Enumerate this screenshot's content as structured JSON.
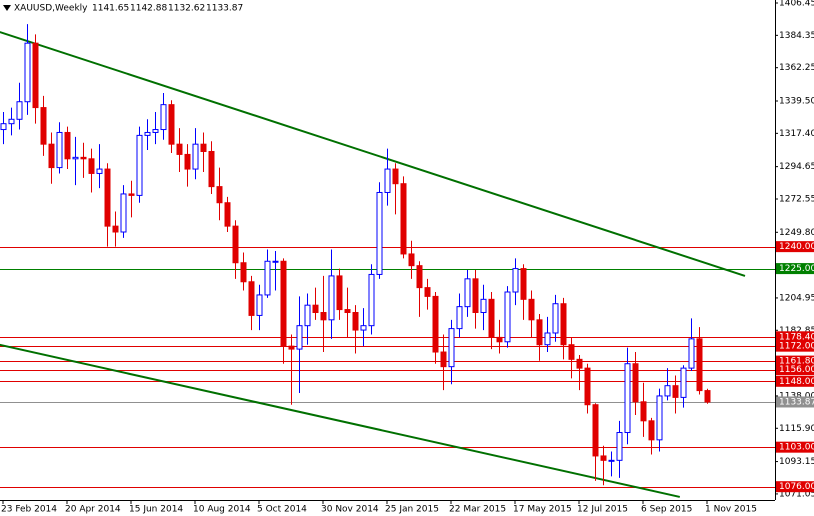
{
  "chart_data": {
    "type": "candlestick",
    "title": "XAUUSD,Weekly",
    "categories": [
      "23 Feb 2014",
      null,
      null,
      null,
      null,
      null,
      null,
      null,
      "20 Apr 2014",
      null,
      null,
      null,
      null,
      null,
      null,
      null,
      "15 Jun 2014",
      null,
      null,
      null,
      null,
      null,
      null,
      null,
      "10 Aug 2014",
      null,
      null,
      null,
      null,
      null,
      null,
      null,
      "5 Oct 2014",
      null,
      null,
      null,
      null,
      null,
      null,
      null,
      "30 Nov 2014",
      null,
      null,
      null,
      null,
      null,
      null,
      null,
      "25 Jan 2015",
      null,
      null,
      null,
      null,
      null,
      null,
      null,
      "22 Mar 2015",
      null,
      null,
      null,
      null,
      null,
      null,
      null,
      "17 May 2015",
      null,
      null,
      null,
      null,
      null,
      null,
      null,
      "12 Jul 2015",
      null,
      null,
      null,
      null,
      null,
      null,
      null,
      "6 Sep 2015",
      null,
      null,
      null,
      null,
      null,
      null,
      null,
      "1 Nov 2015"
    ],
    "open": [
      1320,
      1324,
      1327,
      1339,
      1379,
      1335,
      1310,
      1294,
      1318,
      1300,
      1301,
      1300,
      1290,
      1293,
      1254,
      1250,
      1276,
      1275,
      1316,
      1318,
      1320,
      1337,
      1310,
      1303,
      1293,
      1310,
      1305,
      1281,
      1270,
      1254,
      1229,
      1216,
      1193,
      1207,
      1230,
      1230,
      1172,
      1170,
      1186,
      1200,
      1195,
      1190,
      1220,
      1197,
      1195,
      1183,
      1186,
      1221,
      1277,
      1293,
      1283,
      1235,
      1227,
      1212,
      1206,
      1168,
      1158,
      1184,
      1199,
      1218,
      1195,
      1204,
      1178,
      1175,
      1209,
      1225,
      1204,
      1190,
      1173,
      1181,
      1201,
      1173,
      1163,
      1157,
      1132,
      1097,
      1094,
      1094,
      1113,
      1160,
      1134,
      1121,
      1108,
      1138,
      1145,
      1137,
      1157,
      1177,
      1141.65
    ],
    "high": [
      1332,
      1335,
      1352,
      1392,
      1385,
      1343,
      1318,
      1325,
      1322,
      1315,
      1311,
      1307,
      1310,
      1297,
      1264,
      1282,
      1285,
      1322,
      1327,
      1332,
      1345,
      1340,
      1321,
      1310,
      1321,
      1318,
      1312,
      1294,
      1274,
      1258,
      1236,
      1220,
      1214,
      1238,
      1237,
      1232,
      1180,
      1206,
      1208,
      1212,
      1220,
      1238,
      1225,
      1212,
      1200,
      1198,
      1228,
      1284,
      1307,
      1297,
      1288,
      1244,
      1230,
      1218,
      1209,
      1180,
      1190,
      1208,
      1224,
      1224,
      1214,
      1209,
      1190,
      1213,
      1232,
      1228,
      1210,
      1194,
      1192,
      1207,
      1205,
      1178,
      1166,
      1160,
      1133,
      1104,
      1100,
      1121,
      1171,
      1168,
      1147,
      1123,
      1143,
      1157,
      1152,
      1159,
      1191,
      1185,
      1142.88
    ],
    "low": [
      1310,
      1316,
      1320,
      1330,
      1324,
      1302,
      1283,
      1290,
      1293,
      1282,
      1287,
      1277,
      1280,
      1240,
      1240,
      1246,
      1260,
      1270,
      1306,
      1310,
      1313,
      1304,
      1291,
      1281,
      1286,
      1291,
      1276,
      1258,
      1250,
      1218,
      1210,
      1183,
      1183,
      1205,
      1210,
      1160,
      1132,
      1140,
      1173,
      1190,
      1168,
      1177,
      1190,
      1178,
      1167,
      1172,
      1180,
      1218,
      1268,
      1262,
      1232,
      1218,
      1192,
      1197,
      1160,
      1142,
      1146,
      1178,
      1192,
      1184,
      1183,
      1170,
      1167,
      1171,
      1200,
      1190,
      1178,
      1162,
      1168,
      1175,
      1163,
      1150,
      1142,
      1126,
      1080,
      1077,
      1083,
      1082,
      1105,
      1125,
      1110,
      1098,
      1100,
      1135,
      1126,
      1130,
      1155,
      1139,
      1132.62
    ],
    "close": [
      1324,
      1327,
      1339,
      1379,
      1335,
      1310,
      1294,
      1318,
      1300,
      1301,
      1300,
      1290,
      1293,
      1254,
      1250,
      1276,
      1275,
      1316,
      1318,
      1320,
      1337,
      1310,
      1303,
      1293,
      1310,
      1305,
      1281,
      1270,
      1254,
      1229,
      1216,
      1193,
      1207,
      1230,
      1230,
      1172,
      1170,
      1186,
      1200,
      1195,
      1190,
      1220,
      1197,
      1195,
      1183,
      1186,
      1221,
      1277,
      1293,
      1283,
      1235,
      1227,
      1212,
      1206,
      1168,
      1158,
      1184,
      1199,
      1218,
      1195,
      1204,
      1178,
      1175,
      1209,
      1225,
      1204,
      1190,
      1173,
      1181,
      1201,
      1173,
      1163,
      1157,
      1132,
      1097,
      1094,
      1094,
      1113,
      1160,
      1134,
      1121,
      1108,
      1138,
      1145,
      1137,
      1157,
      1177,
      1141.65,
      1133.87
    ],
    "up_color": "#0000ff",
    "down_color": "#e00000",
    "ylim": [
      1066.9,
      1408.5
    ],
    "yticks": [
      1406.45,
      1384.35,
      1362.25,
      {
        "value": 1339.5,
        "label": "1339.50"
      },
      {
        "value": 1317.4,
        "label": "1317.40"
      },
      1294.65,
      1272.55,
      {
        "value": 1249.8,
        "label": "1249.80"
      },
      1204.95,
      1182.85,
      {
        "value": 1138,
        "label": "1138.00"
      },
      {
        "value": 1115.9,
        "label": "1115.90"
      },
      1093.15,
      1071.05
    ],
    "levels": [
      {
        "value": 1240,
        "label": "1240.00",
        "color": "#e00000"
      },
      {
        "value": 1225,
        "label": "1225.00",
        "color": "#008000"
      },
      {
        "value": 1178.4,
        "label": "1178.40",
        "color": "#e00000"
      },
      {
        "value": 1172,
        "label": "1172.00",
        "color": "#e00000"
      },
      {
        "value": 1161.8,
        "label": "1161.80",
        "color": "#e00000"
      },
      {
        "value": 1156,
        "label": "1156.00",
        "color": "#e00000"
      },
      {
        "value": 1148,
        "label": "1148.00",
        "color": "#e00000"
      },
      {
        "value": 1133.87,
        "color": "#909090"
      },
      {
        "value": 1103,
        "label": "1103.00",
        "color": "#e00000"
      },
      {
        "value": 1076,
        "label": "1076.00",
        "color": "#e00000"
      }
    ],
    "trendlines": [
      {
        "color": "#007000",
        "x": [
          -0.4,
          92.75
        ],
        "y": [
          1386.6,
          1220
        ]
      },
      {
        "color": "#007000",
        "x": [
          -0.4,
          84.6
        ],
        "y": [
          1172.9,
          1069
        ]
      }
    ]
  }
}
